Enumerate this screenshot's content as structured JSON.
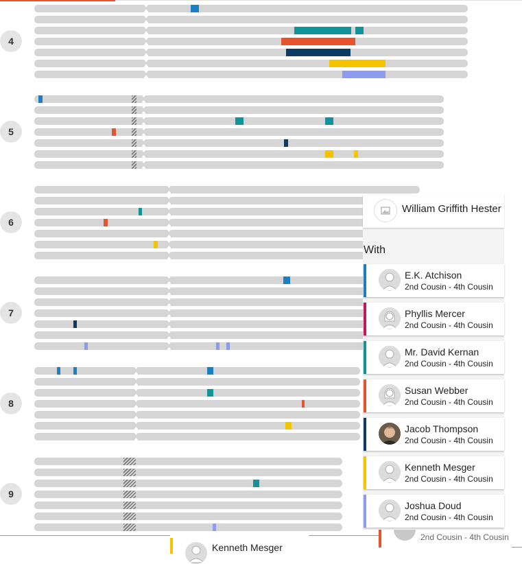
{
  "focus_person": {
    "name": "William Griffith Hester",
    "avatar_icon": "image-placeholder-icon"
  },
  "with_label": "With",
  "matches": [
    {
      "name": "E.K. Atchison",
      "relationship": "2nd Cousin - 4th Cousin",
      "color": "#1b7fc3",
      "avatar": "male-silhouette-icon"
    },
    {
      "name": "Phyllis Mercer",
      "relationship": "2nd Cousin - 4th Cousin",
      "color": "#c2185b",
      "avatar": "female-silhouette-icon"
    },
    {
      "name": "Mr. David Kernan",
      "relationship": "2nd Cousin - 4th Cousin",
      "color": "#12939a",
      "avatar": "male-silhouette-icon"
    },
    {
      "name": "Susan Webber",
      "relationship": "2nd Cousin - 4th Cousin",
      "color": "#e5542e",
      "avatar": "female-silhouette-icon"
    },
    {
      "name": "Jacob Thompson",
      "relationship": "2nd Cousin - 4th Cousin",
      "color": "#0d3b66",
      "avatar": "photo-avatar"
    },
    {
      "name": "Kenneth Mesger",
      "relationship": "2nd Cousin - 4th Cousin",
      "color": "#f5c400",
      "avatar": "male-silhouette-icon"
    },
    {
      "name": "Joshua Doud",
      "relationship": "2nd Cousin - 4th Cousin",
      "color": "#8e9cef",
      "avatar": "male-silhouette-icon"
    }
  ],
  "chromosomes": [
    {
      "label": "4",
      "segments": [
        {
          "row": 0,
          "start": 278,
          "end": 290,
          "match": 0
        },
        {
          "row": 2,
          "start": 429,
          "end": 512,
          "match": 2
        },
        {
          "row": 2,
          "start": 518,
          "end": 530,
          "match": 2
        },
        {
          "row": 3,
          "start": 410,
          "end": 518,
          "match": 3
        },
        {
          "row": 4,
          "start": 417,
          "end": 511,
          "match": 4
        },
        {
          "row": 5,
          "start": 480,
          "end": 562,
          "match": 5
        },
        {
          "row": 6,
          "start": 499,
          "end": 562,
          "match": 6
        }
      ]
    },
    {
      "label": "5",
      "segments": [
        {
          "row": 0,
          "start": 56,
          "end": 62,
          "match": 0
        },
        {
          "row": 2,
          "start": 343,
          "end": 355,
          "match": 2
        },
        {
          "row": 2,
          "start": 474,
          "end": 486,
          "match": 2
        },
        {
          "row": 3,
          "start": 163,
          "end": 169,
          "match": 3
        },
        {
          "row": 4,
          "start": 414,
          "end": 420,
          "match": 4
        },
        {
          "row": 5,
          "start": 474,
          "end": 486,
          "match": 5
        },
        {
          "row": 5,
          "start": 516,
          "end": 522,
          "match": 5
        }
      ]
    },
    {
      "label": "6",
      "segments": [
        {
          "row": 2,
          "start": 202,
          "end": 207,
          "match": 2
        },
        {
          "row": 3,
          "start": 151,
          "end": 157,
          "match": 3
        },
        {
          "row": 5,
          "start": 224,
          "end": 230,
          "match": 5
        }
      ]
    },
    {
      "label": "7",
      "segments": [
        {
          "row": 0,
          "start": 413,
          "end": 423,
          "match": 0
        },
        {
          "row": 4,
          "start": 107,
          "end": 112,
          "match": 4
        },
        {
          "row": 6,
          "start": 123,
          "end": 128,
          "match": 6
        },
        {
          "row": 6,
          "start": 315,
          "end": 320,
          "match": 6
        },
        {
          "row": 6,
          "start": 330,
          "end": 335,
          "match": 6
        }
      ]
    },
    {
      "label": "8",
      "segments": [
        {
          "row": 0,
          "start": 83,
          "end": 88,
          "match": 0
        },
        {
          "row": 0,
          "start": 107,
          "end": 112,
          "match": 0
        },
        {
          "row": 0,
          "start": 302,
          "end": 311,
          "match": 0
        },
        {
          "row": 2,
          "start": 302,
          "end": 311,
          "match": 2
        },
        {
          "row": 3,
          "start": 440,
          "end": 444,
          "match": 3
        },
        {
          "row": 5,
          "start": 416,
          "end": 425,
          "match": 5
        }
      ]
    },
    {
      "label": "9",
      "segments": [
        {
          "row": 2,
          "start": 369,
          "end": 378,
          "match": 2
        },
        {
          "row": 6,
          "start": 310,
          "end": 315,
          "match": 6
        }
      ]
    }
  ],
  "overlap": {
    "card_name": "Kenneth Mesger",
    "card_color": "#f5c400",
    "relationship_fragment": "2nd Cousin - 4th Cousin",
    "relationship_color": "#e5542e"
  }
}
